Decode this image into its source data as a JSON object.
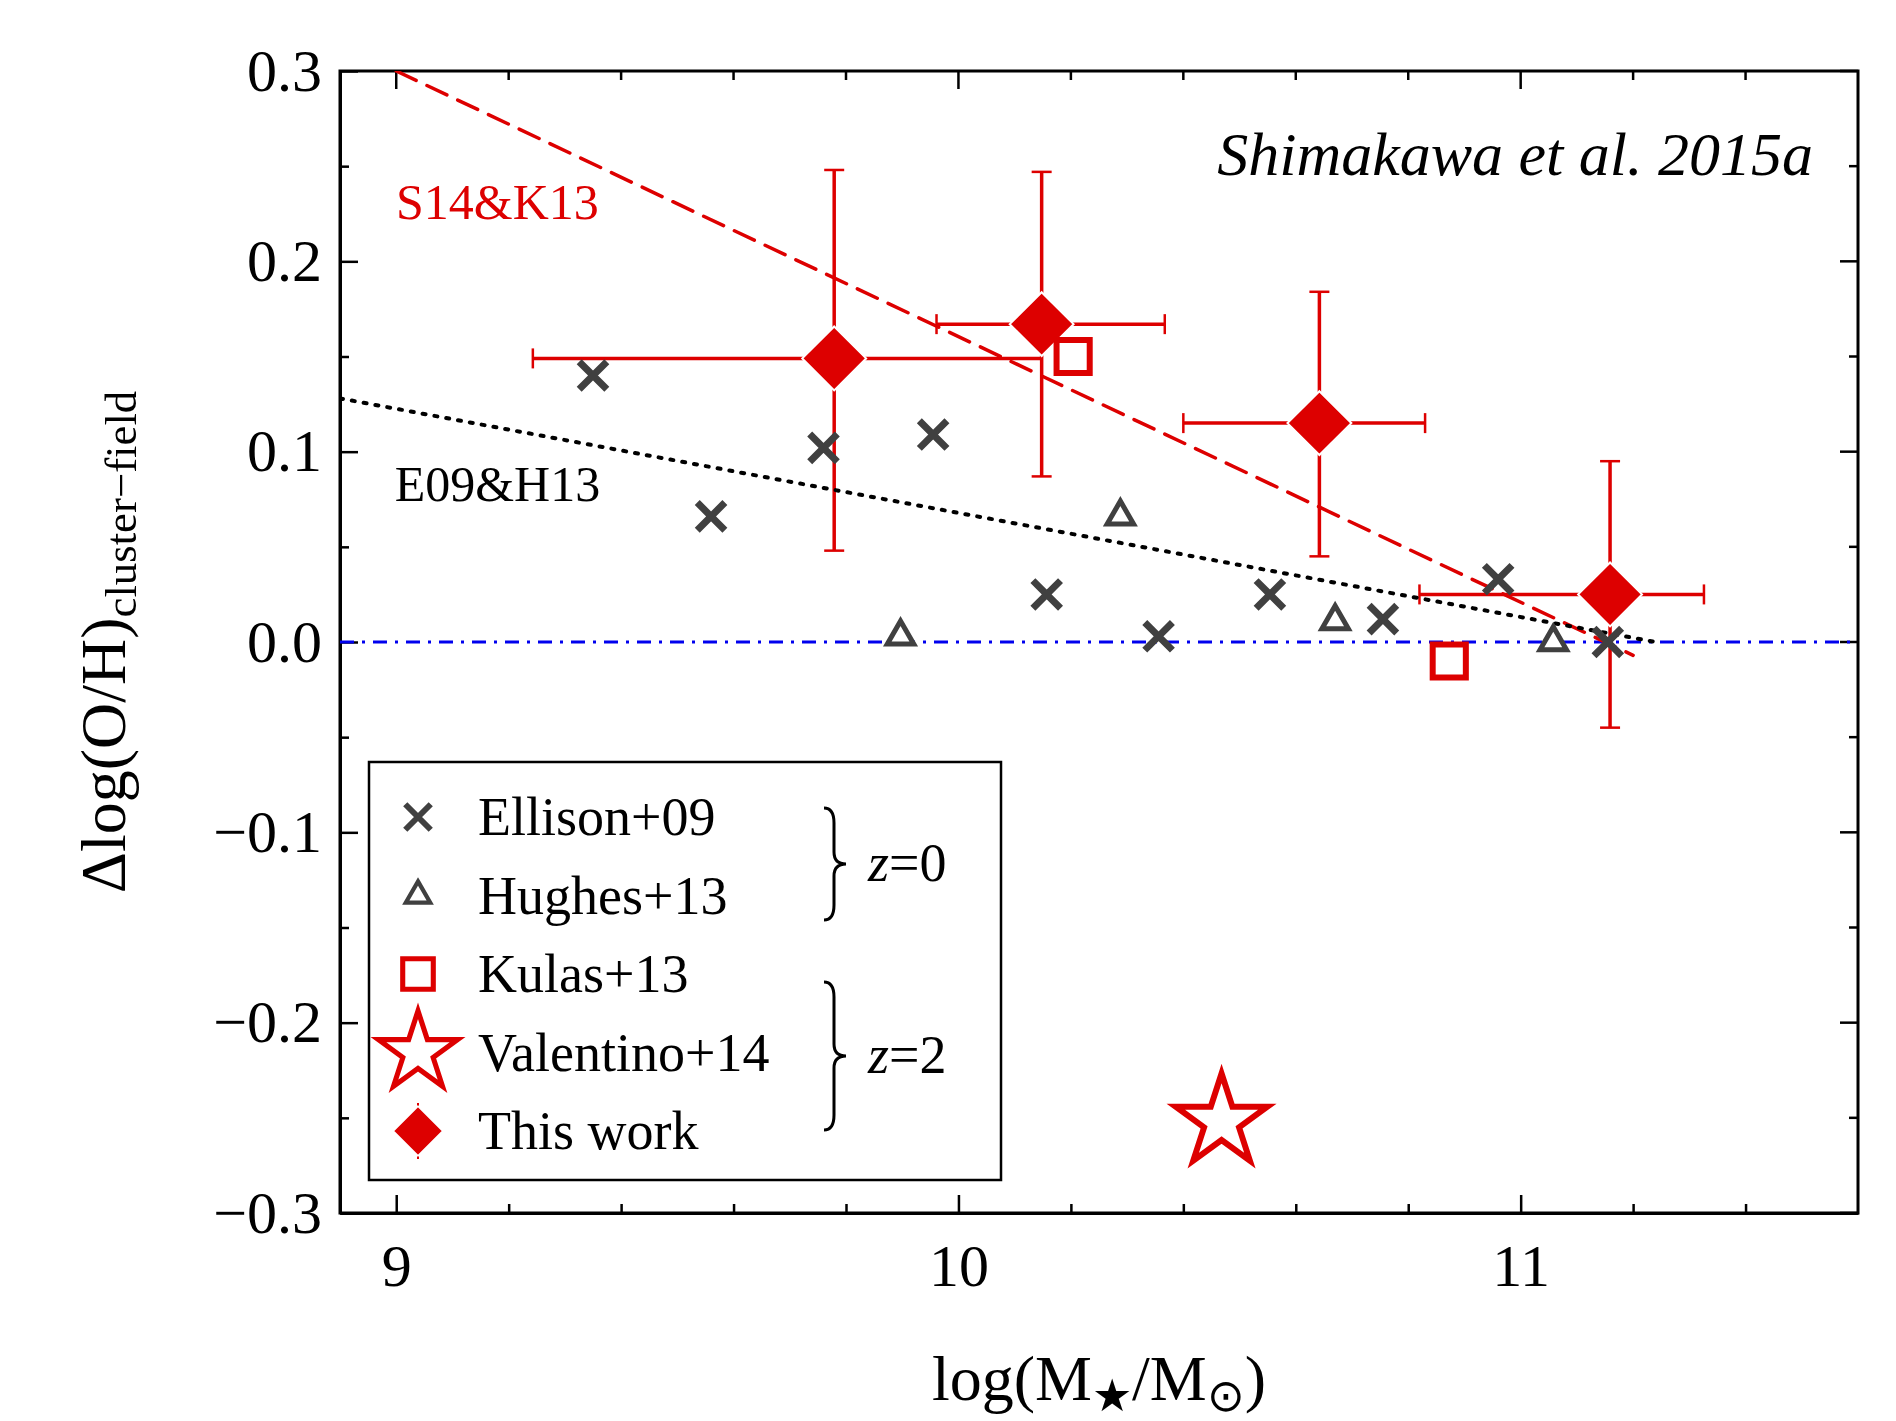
{
  "chart_data": {
    "type": "scatter",
    "xlabel": "log(M$_{★}$/M$_{⊙}$)",
    "ylabel": "Δlog(O/H)$_{cluster−field}$",
    "xlim": [
      8.9,
      11.6
    ],
    "ylim": [
      -0.3,
      0.3
    ],
    "xticks": [
      9,
      {
        "value": 9.2,
        "label": null
      },
      {
        "value": 9.4,
        "label": null
      },
      {
        "value": 9.6,
        "label": null
      },
      {
        "value": 9.8,
        "label": null
      },
      10,
      {
        "value": 10.2,
        "label": null
      },
      {
        "value": 10.4,
        "label": null
      },
      {
        "value": 10.6,
        "label": null
      },
      {
        "value": 10.8,
        "label": null
      },
      11,
      {
        "value": 11.2,
        "label": null
      },
      {
        "value": 11.4,
        "label": null
      }
    ],
    "yticks": [
      {
        "value": -0.3,
        "label": "−0.3"
      },
      {
        "value": -0.25,
        "label": null
      },
      {
        "value": -0.2,
        "label": "−0.2"
      },
      {
        "value": -0.15,
        "label": null
      },
      {
        "value": -0.1,
        "label": "−0.1"
      },
      {
        "value": -0.05,
        "label": null
      },
      {
        "value": 0,
        "label": "0.0"
      },
      {
        "value": 0.05,
        "label": null
      },
      0.1,
      {
        "value": 0.15,
        "label": null
      },
      0.2,
      {
        "value": 0.25,
        "label": null
      },
      0.3
    ],
    "legend": "bottom left",
    "grid": false,
    "ref_lines": [
      {
        "axis": "y",
        "value": 0,
        "color": "#0000ee",
        "line_style": "dashdot"
      }
    ],
    "annotations": [
      "Shimakawa et al. 2015a",
      "z=0",
      "z=2"
    ],
    "series": [
      {
        "name": "S14&K13",
        "type": "line",
        "color": "#dd0000",
        "line_style": "dashed",
        "x": [
          9,
          11.2
        ],
        "values": [
          0.3,
          -0.007
        ]
      },
      {
        "name": "E09&H13",
        "type": "line",
        "color": "#000000",
        "line_style": "dotted",
        "x": [
          8.9,
          11.24
        ],
        "values": [
          0.128,
          0
        ]
      },
      {
        "name": "Ellison+09",
        "marker": "cross",
        "color": "#404040",
        "x": [
          9.35,
          9.56,
          9.76,
          9.955,
          10.157,
          10.356,
          10.554,
          10.755,
          10.96,
          11.155
        ],
        "values": [
          0.14,
          0.066,
          0.102,
          0.109,
          0.025,
          0.003,
          0.025,
          0.012,
          0.033,
          0.0
        ]
      },
      {
        "name": "Hughes+13",
        "marker": "triangle",
        "color": "#404040",
        "x": [
          9.897,
          10.288,
          10.67,
          11.058
        ],
        "values": [
          0.003,
          0.066,
          0.011,
          0.0
        ]
      },
      {
        "name": "Kulas+13",
        "marker": "square",
        "color": "#dd0000",
        "x": [
          10.204,
          10.873
        ],
        "values": [
          0.15,
          -0.01
        ]
      },
      {
        "name": "Valentino+14",
        "marker": "star",
        "color": "#dd0000",
        "x": [
          10.468
        ],
        "values": [
          -0.252
        ]
      },
      {
        "name": "This work",
        "marker": "diamond",
        "color": "#dd0000",
        "x": [
          9.779,
          10.148,
          10.642,
          11.159
        ],
        "values": [
          0.149,
          0.167,
          0.115,
          0.025
        ],
        "xerrors": [
          [
            9.243,
            10.148
          ],
          [
            9.961,
            10.367
          ],
          [
            10.4,
            10.83
          ],
          [
            10.82,
            11.326
          ]
        ],
        "errors": [
          [
            0.048,
            0.248
          ],
          [
            0.087,
            0.247
          ],
          [
            0.045,
            0.184
          ],
          [
            -0.045,
            0.095
          ]
        ]
      }
    ]
  }
}
